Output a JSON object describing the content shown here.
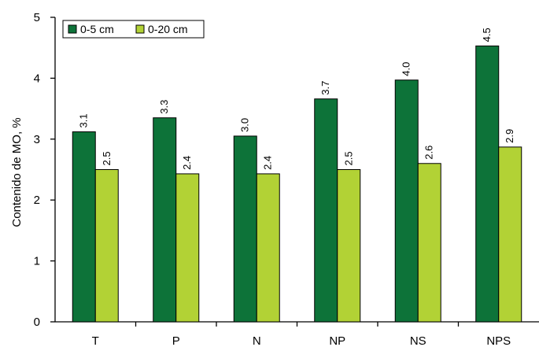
{
  "chart_data": {
    "type": "bar",
    "title": "",
    "xlabel": "",
    "ylabel": "Contenido de MO, %",
    "ylim": [
      0,
      5
    ],
    "yticks": [
      "0",
      "1",
      "2",
      "3",
      "4",
      "5"
    ],
    "categories": [
      "T",
      "P",
      "N",
      "NP",
      "NS",
      "NPS"
    ],
    "series": [
      {
        "name": "0-5 cm",
        "color": "#0d7339",
        "values": [
          3.12,
          3.35,
          3.05,
          3.66,
          3.97,
          4.53
        ],
        "labels": [
          "3.1",
          "3.3",
          "3.0",
          "3.7",
          "4.0",
          "4.5"
        ]
      },
      {
        "name": "0-20 cm",
        "color": "#b2d235",
        "values": [
          2.5,
          2.43,
          2.43,
          2.5,
          2.6,
          2.87
        ],
        "labels": [
          "2.5",
          "2.4",
          "2.4",
          "2.5",
          "2.6",
          "2.9"
        ]
      }
    ],
    "grid": false,
    "legend_position": "top-left"
  }
}
